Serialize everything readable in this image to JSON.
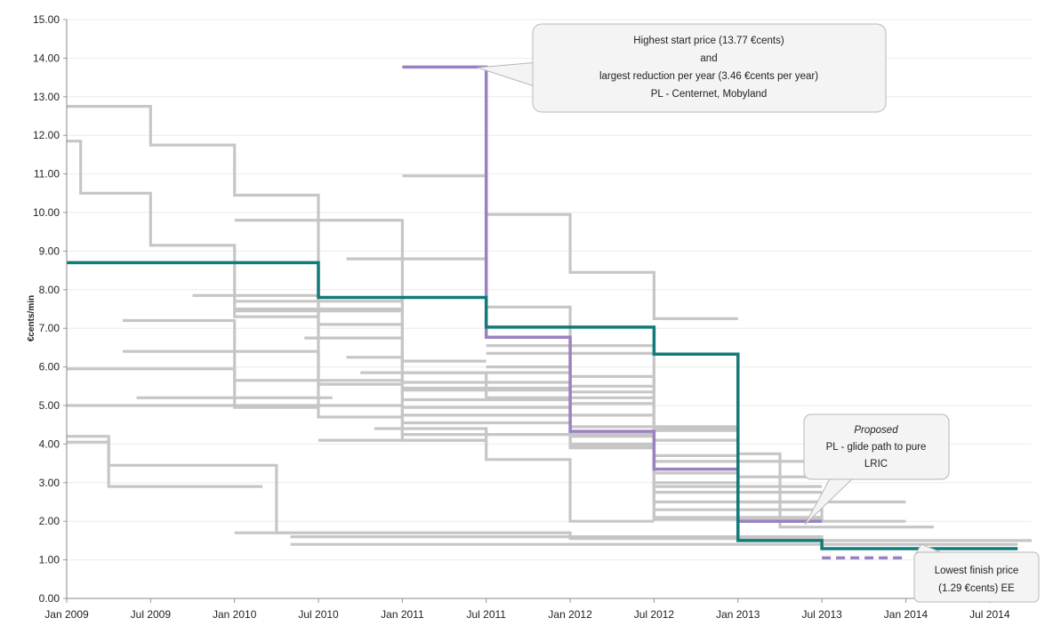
{
  "chart_data": {
    "type": "line",
    "step": true,
    "ylabel": "€cents/min",
    "ylim": [
      0,
      15
    ],
    "yticks": [
      "0.00",
      "1.00",
      "2.00",
      "3.00",
      "4.00",
      "5.00",
      "6.00",
      "7.00",
      "8.00",
      "9.00",
      "10.00",
      "11.00",
      "12.00",
      "13.00",
      "14.00",
      "15.00"
    ],
    "xlim": [
      "2009-01",
      "2014-10"
    ],
    "xticks": [
      {
        "date": "2009-01",
        "label": "Jan 2009"
      },
      {
        "date": "2009-07",
        "label": "Jul 2009"
      },
      {
        "date": "2010-01",
        "label": "Jan 2010"
      },
      {
        "date": "2010-07",
        "label": "Jul 2010"
      },
      {
        "date": "2011-01",
        "label": "Jan 2011"
      },
      {
        "date": "2011-07",
        "label": "Jul 2011"
      },
      {
        "date": "2012-01",
        "label": "Jan 2012"
      },
      {
        "date": "2012-07",
        "label": "Jul 2012"
      },
      {
        "date": "2013-01",
        "label": "Jan 2013"
      },
      {
        "date": "2013-07",
        "label": "Jul 2013"
      },
      {
        "date": "2014-01",
        "label": "Jan 2014"
      },
      {
        "date": "2014-07",
        "label": "Jul 2014"
      }
    ],
    "grid": true,
    "colors": {
      "highlight_purple": "#9a82c0",
      "highlight_teal": "#127a78",
      "background_series": "#c6c6c6"
    },
    "highlight_series": [
      {
        "color": "#9a82c0",
        "points": [
          [
            "2011-01",
            13.77
          ],
          [
            "2011-07",
            13.77
          ],
          [
            "2011-07",
            6.77
          ],
          [
            "2012-01",
            6.77
          ],
          [
            "2012-01",
            4.33
          ],
          [
            "2012-07",
            4.33
          ],
          [
            "2012-07",
            3.35
          ],
          [
            "2013-01",
            3.35
          ],
          [
            "2013-01",
            2.0
          ],
          [
            "2013-07",
            2.0
          ]
        ]
      },
      {
        "color": "#127a78",
        "points": [
          [
            "2009-01",
            8.7
          ],
          [
            "2010-07",
            8.7
          ],
          [
            "2010-07",
            7.8
          ],
          [
            "2011-07",
            7.8
          ],
          [
            "2011-07",
            7.03
          ],
          [
            "2012-07",
            7.03
          ],
          [
            "2012-07",
            6.33
          ],
          [
            "2013-01",
            6.33
          ],
          [
            "2013-01",
            1.5
          ],
          [
            "2013-07",
            1.5
          ],
          [
            "2013-07",
            1.29
          ],
          [
            "2014-09",
            1.29
          ]
        ]
      }
    ],
    "proposed_series": [
      {
        "color": "#9a82c0",
        "dashed": true,
        "points": [
          [
            "2013-01",
            2.0
          ],
          [
            "2013-07",
            2.0
          ]
        ]
      },
      {
        "color": "#9a82c0",
        "dashed": true,
        "points": [
          [
            "2013-07",
            1.05
          ],
          [
            "2014-01",
            1.05
          ]
        ]
      }
    ],
    "background_series": [
      [
        [
          "2009-01",
          12.75
        ],
        [
          "2009-07",
          12.75
        ],
        [
          "2009-07",
          11.75
        ],
        [
          "2010-01",
          11.75
        ],
        [
          "2010-01",
          10.45
        ],
        [
          "2010-07",
          10.45
        ],
        [
          "2010-07",
          4.7
        ],
        [
          "2011-01",
          4.7
        ]
      ],
      [
        [
          "2009-01",
          11.85
        ],
        [
          "2009-02",
          11.85
        ],
        [
          "2009-02",
          10.5
        ],
        [
          "2009-07",
          10.5
        ],
        [
          "2009-07",
          9.15
        ],
        [
          "2010-01",
          9.15
        ],
        [
          "2010-01",
          7.3
        ],
        [
          "2010-07",
          7.3
        ]
      ],
      [
        [
          "2009-01",
          5.95
        ],
        [
          "2010-01",
          5.95
        ],
        [
          "2010-01",
          4.95
        ],
        [
          "2010-07",
          4.95
        ]
      ],
      [
        [
          "2009-01",
          5.0
        ],
        [
          "2011-01",
          5.0
        ]
      ],
      [
        [
          "2009-01",
          4.2
        ],
        [
          "2009-04",
          4.2
        ],
        [
          "2009-04",
          2.9
        ],
        [
          "2010-03",
          2.9
        ]
      ],
      [
        [
          "2009-01",
          4.05
        ],
        [
          "2009-04",
          4.05
        ],
        [
          "2009-04",
          3.45
        ],
        [
          "2010-04",
          3.45
        ],
        [
          "2010-04",
          1.7
        ],
        [
          "2012-01",
          1.7
        ]
      ],
      [
        [
          "2009-05",
          7.2
        ],
        [
          "2010-01",
          7.2
        ],
        [
          "2010-01",
          5.65
        ],
        [
          "2011-01",
          5.65
        ]
      ],
      [
        [
          "2009-05",
          6.4
        ],
        [
          "2010-07",
          6.4
        ],
        [
          "2010-07",
          5.55
        ],
        [
          "2011-01",
          5.55
        ]
      ],
      [
        [
          "2009-06",
          5.2
        ],
        [
          "2010-08",
          5.2
        ]
      ],
      [
        [
          "2009-10",
          7.85
        ],
        [
          "2010-07",
          7.85
        ],
        [
          "2010-07",
          7.1
        ],
        [
          "2011-01",
          7.1
        ]
      ],
      [
        [
          "2010-01",
          9.8
        ],
        [
          "2011-01",
          9.8
        ],
        [
          "2011-01",
          4.1
        ],
        [
          "2011-07",
          4.1
        ]
      ],
      [
        [
          "2010-01",
          7.7
        ],
        [
          "2011-01",
          7.7
        ]
      ],
      [
        [
          "2010-01",
          7.5
        ],
        [
          "2011-01",
          7.5
        ]
      ],
      [
        [
          "2010-01",
          7.45
        ],
        [
          "2011-01",
          7.45
        ],
        [
          "2011-01",
          6.15
        ],
        [
          "2011-07",
          6.15
        ]
      ],
      [
        [
          "2010-01",
          1.7
        ],
        [
          "2012-01",
          1.7
        ],
        [
          "2012-01",
          1.55
        ],
        [
          "2013-07",
          1.55
        ]
      ],
      [
        [
          "2010-05",
          1.6
        ],
        [
          "2013-07",
          1.6
        ],
        [
          "2013-07",
          1.5
        ],
        [
          "2014-10",
          1.5
        ]
      ],
      [
        [
          "2010-05",
          1.4
        ],
        [
          "2014-09",
          1.4
        ]
      ],
      [
        [
          "2010-06",
          6.75
        ],
        [
          "2011-01",
          6.75
        ],
        [
          "2011-01",
          5.45
        ],
        [
          "2012-01",
          5.45
        ]
      ],
      [
        [
          "2010-07",
          4.1
        ],
        [
          "2011-07",
          4.1
        ]
      ],
      [
        [
          "2010-09",
          8.8
        ],
        [
          "2011-07",
          8.8
        ],
        [
          "2011-07",
          7.55
        ],
        [
          "2012-01",
          7.55
        ],
        [
          "2012-01",
          6.55
        ],
        [
          "2012-07",
          6.55
        ],
        [
          "2012-07",
          2.05
        ],
        [
          "2013-07",
          2.05
        ]
      ],
      [
        [
          "2010-09",
          6.25
        ],
        [
          "2011-01",
          6.25
        ],
        [
          "2011-01",
          4.25
        ],
        [
          "2012-07",
          4.25
        ]
      ],
      [
        [
          "2010-10",
          5.85
        ],
        [
          "2011-07",
          5.85
        ],
        [
          "2011-07",
          5.2
        ],
        [
          "2012-07",
          5.2
        ]
      ],
      [
        [
          "2010-11",
          4.4
        ],
        [
          "2011-07",
          4.4
        ],
        [
          "2011-07",
          3.6
        ],
        [
          "2012-01",
          3.6
        ],
        [
          "2012-01",
          2.0
        ],
        [
          "2012-07",
          2.0
        ]
      ],
      [
        [
          "2011-01",
          10.95
        ],
        [
          "2011-07",
          10.95
        ],
        [
          "2011-07",
          9.95
        ],
        [
          "2012-01",
          9.95
        ],
        [
          "2012-01",
          8.45
        ],
        [
          "2012-07",
          8.45
        ],
        [
          "2012-07",
          7.25
        ],
        [
          "2013-01",
          7.25
        ]
      ],
      [
        [
          "2011-01",
          5.85
        ],
        [
          "2012-01",
          5.85
        ],
        [
          "2012-01",
          5.35
        ],
        [
          "2012-07",
          5.35
        ],
        [
          "2012-07",
          3.25
        ],
        [
          "2013-01",
          3.25
        ]
      ],
      [
        [
          "2011-01",
          5.6
        ],
        [
          "2012-01",
          5.6
        ],
        [
          "2012-01",
          3.95
        ],
        [
          "2012-07",
          3.95
        ]
      ],
      [
        [
          "2011-01",
          5.4
        ],
        [
          "2012-01",
          5.4
        ],
        [
          "2012-01",
          4.2
        ],
        [
          "2012-07",
          4.2
        ],
        [
          "2012-07",
          2.5
        ],
        [
          "2013-07",
          2.5
        ]
      ],
      [
        [
          "2011-01",
          5.15
        ],
        [
          "2012-01",
          5.15
        ]
      ],
      [
        [
          "2011-01",
          4.95
        ],
        [
          "2012-01",
          4.95
        ],
        [
          "2012-01",
          3.9
        ],
        [
          "2012-07",
          3.9
        ],
        [
          "2012-07",
          2.9
        ],
        [
          "2013-07",
          2.9
        ]
      ],
      [
        [
          "2011-01",
          4.75
        ],
        [
          "2012-07",
          4.75
        ]
      ],
      [
        [
          "2011-01",
          4.55
        ],
        [
          "2012-01",
          4.55
        ],
        [
          "2012-01",
          4.0
        ],
        [
          "2012-07",
          4.0
        ],
        [
          "2012-07",
          2.1
        ],
        [
          "2013-07",
          2.1
        ]
      ],
      [
        [
          "2011-07",
          6.55
        ],
        [
          "2012-01",
          6.55
        ],
        [
          "2012-01",
          5.75
        ],
        [
          "2012-07",
          5.75
        ],
        [
          "2012-07",
          4.4
        ],
        [
          "2013-01",
          4.4
        ]
      ],
      [
        [
          "2011-07",
          6.35
        ],
        [
          "2012-07",
          6.35
        ],
        [
          "2012-07",
          3.7
        ],
        [
          "2013-01",
          3.7
        ]
      ],
      [
        [
          "2011-07",
          6.0
        ],
        [
          "2012-01",
          6.0
        ],
        [
          "2012-01",
          5.05
        ],
        [
          "2012-07",
          5.05
        ],
        [
          "2012-07",
          4.1
        ],
        [
          "2013-01",
          4.1
        ],
        [
          "2013-01",
          3.15
        ],
        [
          "2013-07",
          3.15
        ]
      ],
      [
        [
          "2012-01",
          5.5
        ],
        [
          "2012-07",
          5.5
        ],
        [
          "2012-07",
          4.35
        ],
        [
          "2013-01",
          4.35
        ]
      ],
      [
        [
          "2012-01",
          4.45
        ],
        [
          "2013-01",
          4.45
        ],
        [
          "2013-01",
          3.75
        ],
        [
          "2013-04",
          3.75
        ],
        [
          "2013-04",
          1.85
        ],
        [
          "2014-03",
          1.85
        ]
      ],
      [
        [
          "2012-07",
          3.55
        ],
        [
          "2013-07",
          3.55
        ]
      ],
      [
        [
          "2012-07",
          3.0
        ],
        [
          "2013-01",
          3.0
        ],
        [
          "2013-01",
          2.5
        ],
        [
          "2014-01",
          2.5
        ]
      ],
      [
        [
          "2012-07",
          2.3
        ],
        [
          "2013-07",
          2.3
        ],
        [
          "2013-07",
          2.0
        ],
        [
          "2014-01",
          2.0
        ]
      ],
      [
        [
          "2012-07",
          2.75
        ],
        [
          "2013-07",
          2.75
        ]
      ]
    ],
    "annotations": [
      {
        "lines": [
          "Highest start price (13.77 €cents)",
          "and",
          "largest reduction per year (3.46 €cents per year)",
          "PL - Centernet, Mobyland"
        ]
      },
      {
        "lines": [
          "Proposed",
          "PL - glide path to pure",
          "LRIC"
        ]
      },
      {
        "lines": [
          "Lowest finish price",
          "(1.29 €cents)  EE"
        ]
      }
    ]
  }
}
